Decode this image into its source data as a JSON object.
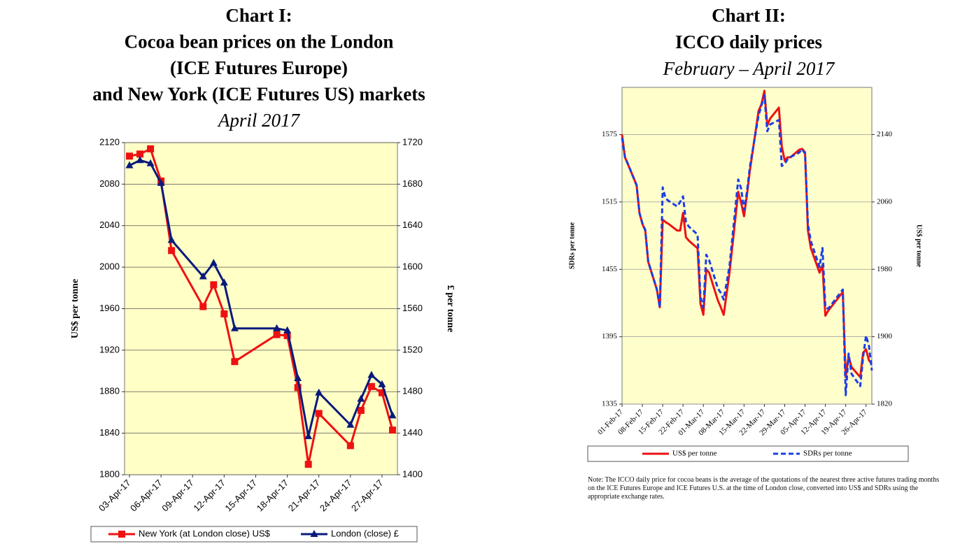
{
  "chart_data": [
    {
      "type": "line",
      "title": [
        "Chart I:",
        "Cocoa bean prices on the London",
        "(ICE Futures Europe)",
        "and New York (ICE Futures US) markets"
      ],
      "subtitle": "April 2017",
      "y_label": "US$ per tonne",
      "y2_label": "£ per tonne",
      "x": [
        "03-Apr-17",
        "04-Apr-17",
        "05-Apr-17",
        "06-Apr-17",
        "07-Apr-17",
        "10-Apr-17",
        "11-Apr-17",
        "12-Apr-17",
        "13-Apr-17",
        "17-Apr-17",
        "18-Apr-17",
        "19-Apr-17",
        "20-Apr-17",
        "21-Apr-17",
        "24-Apr-17",
        "25-Apr-17",
        "26-Apr-17",
        "27-Apr-17",
        "28-Apr-17"
      ],
      "xlim": [
        "03-Apr-17",
        "28-Apr-17"
      ],
      "xticks": [
        "03-Apr-17",
        "06-Apr-17",
        "09-Apr-17",
        "12-Apr-17",
        "15-Apr-17",
        "18-Apr-17",
        "21-Apr-17",
        "24-Apr-17",
        "27-Apr-17"
      ],
      "ylim": [
        1800,
        2120
      ],
      "yticks": [
        1800,
        1840,
        1880,
        1920,
        1960,
        2000,
        2040,
        2080,
        2120
      ],
      "y2lim": [
        1400,
        1720
      ],
      "y2ticks": [
        1400,
        1440,
        1480,
        1520,
        1560,
        1600,
        1640,
        1680,
        1720
      ],
      "grid": true,
      "legend_position": "bottom",
      "series": [
        {
          "name": "New York (at London close) US$",
          "color": "#ee1111",
          "marker": "square",
          "values": [
            2107,
            2109,
            2114,
            2083,
            2016,
            1962,
            1983,
            1955,
            1909,
            1935,
            1934,
            1884,
            1810,
            1859,
            1828,
            1862,
            1885,
            1879,
            1843
          ]
        },
        {
          "name": "London (close) £",
          "color": "#0a1a7a",
          "marker": "triangle",
          "axis": "y2",
          "values": [
            1698,
            1703,
            1700,
            1681,
            1626,
            1591,
            1604,
            1585,
            1541,
            1541,
            1539,
            1493,
            1437,
            1479,
            1448,
            1473,
            1496,
            1487,
            1457
          ]
        }
      ]
    },
    {
      "type": "line",
      "title": [
        "Chart II:",
        "ICCO daily prices"
      ],
      "subtitle": "February – April 2017",
      "y_label": "SDRs per tonne",
      "y2_label": "US$ per tonne",
      "x": [
        "01-Feb-17",
        "02-Feb-17",
        "03-Feb-17",
        "06-Feb-17",
        "07-Feb-17",
        "08-Feb-17",
        "09-Feb-17",
        "10-Feb-17",
        "13-Feb-17",
        "14-Feb-17",
        "15-Feb-17",
        "16-Feb-17",
        "17-Feb-17",
        "20-Feb-17",
        "21-Feb-17",
        "22-Feb-17",
        "23-Feb-17",
        "24-Feb-17",
        "27-Feb-17",
        "28-Feb-17",
        "01-Mar-17",
        "02-Mar-17",
        "03-Mar-17",
        "06-Mar-17",
        "07-Mar-17",
        "08-Mar-17",
        "09-Mar-17",
        "10-Mar-17",
        "13-Mar-17",
        "14-Mar-17",
        "15-Mar-17",
        "16-Mar-17",
        "17-Mar-17",
        "20-Mar-17",
        "21-Mar-17",
        "22-Mar-17",
        "23-Mar-17",
        "24-Mar-17",
        "27-Mar-17",
        "28-Mar-17",
        "29-Mar-17",
        "30-Mar-17",
        "31-Mar-17",
        "03-Apr-17",
        "04-Apr-17",
        "05-Apr-17",
        "06-Apr-17",
        "07-Apr-17",
        "10-Apr-17",
        "11-Apr-17",
        "12-Apr-17",
        "13-Apr-17",
        "18-Apr-17",
        "19-Apr-17",
        "20-Apr-17",
        "21-Apr-17",
        "24-Apr-17",
        "25-Apr-17",
        "26-Apr-17",
        "27-Apr-17",
        "28-Apr-17"
      ],
      "xlim": [
        "01-Feb-17",
        "28-Apr-17"
      ],
      "xticks": [
        "01-Feb-17",
        "08-Feb-17",
        "15-Feb-17",
        "22-Feb-17",
        "01-Mar-17",
        "08-Mar-17",
        "15-Mar-17",
        "22-Mar-17",
        "29-Mar-17",
        "05-Apr-17",
        "12-Apr-17",
        "19-Apr-17",
        "26-Apr-17"
      ],
      "ylim": [
        1335,
        1617
      ],
      "yticks": [
        1335,
        1395,
        1455,
        1515,
        1575
      ],
      "y2lim": [
        1820,
        2196
      ],
      "y2ticks": [
        1820,
        1900,
        1980,
        2060,
        2140
      ],
      "grid": true,
      "legend_position": "bottom",
      "note": "Note: The ICCO daily price for cocoa beans is the average of the quotations of the nearest three active futures trading months on the ICE Futures Europe and ICE Futures U.S. at the time of London close, converted into US$ and SDRs using the appropriate exchange rates.",
      "series": [
        {
          "name": "US$ per tonne",
          "color": "#ee1111",
          "line_style": "solid",
          "axis": "y2",
          "values": [
            2140,
            2113,
            2105,
            2080,
            2047,
            2034,
            2026,
            1989,
            1956,
            1935,
            2039,
            2036,
            2034,
            2026,
            2026,
            2047,
            2018,
            2014,
            2005,
            1939,
            1926,
            1980,
            1976,
            1943,
            1935,
            1926,
            1951,
            1976,
            2072,
            2059,
            2043,
            2068,
            2097,
            2168,
            2176,
            2192,
            2151,
            2159,
            2172,
            2126,
            2109,
            2113,
            2113,
            2122,
            2123,
            2119,
            2026,
            2005,
            1976,
            1985,
            1925,
            1931,
            1953,
            1852,
            1877,
            1864,
            1852,
            1881,
            1885,
            1872,
            1868
          ]
        },
        {
          "name": "SDRs per tonne",
          "color": "#1a3ee8",
          "line_style": "dashed",
          "values": [
            1572,
            1555,
            1549,
            1530,
            1505,
            1496,
            1490,
            1462,
            1437,
            1421,
            1528,
            1518,
            1516,
            1511,
            1515,
            1520,
            1497,
            1493,
            1486,
            1430,
            1421,
            1468,
            1463,
            1438,
            1434,
            1428,
            1443,
            1458,
            1535,
            1527,
            1508,
            1524,
            1546,
            1592,
            1601,
            1610,
            1578,
            1584,
            1588,
            1547,
            1549,
            1553,
            1555,
            1559,
            1562,
            1558,
            1495,
            1480,
            1457,
            1474,
            1421,
            1420,
            1437,
            1343,
            1380,
            1362,
            1351,
            1377,
            1396,
            1387,
            1365
          ]
        }
      ]
    }
  ]
}
